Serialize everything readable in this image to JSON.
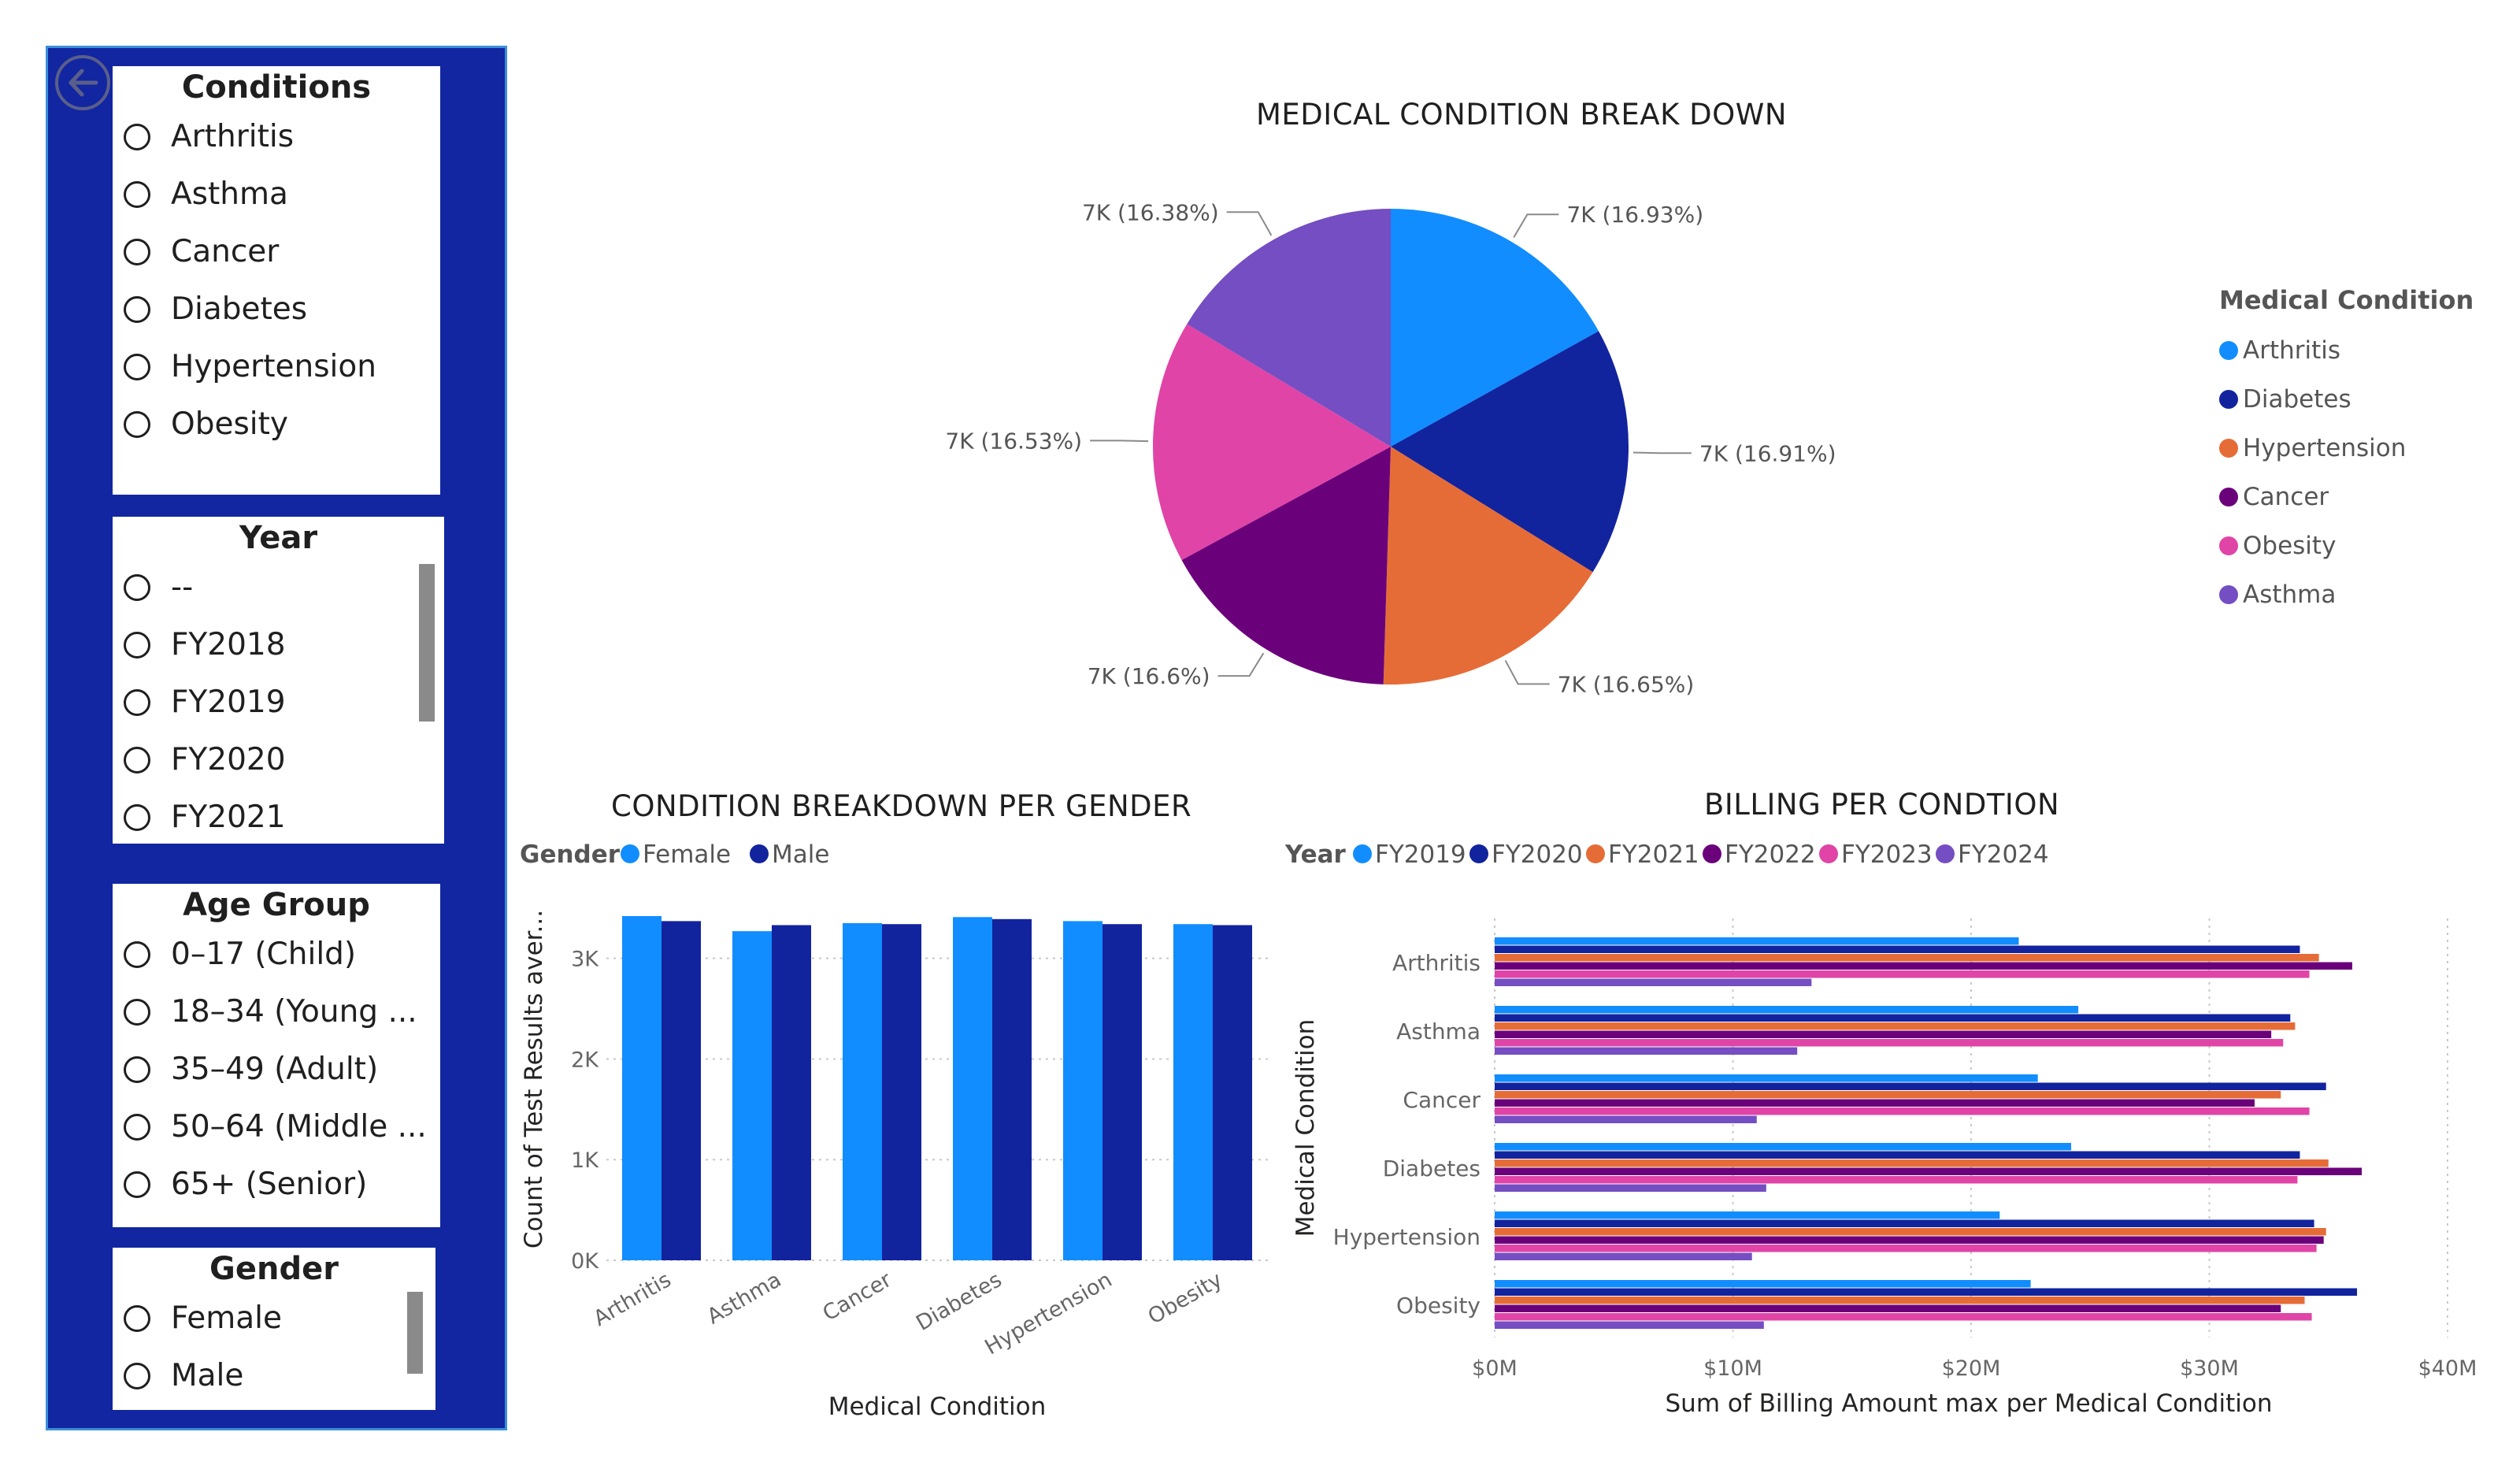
{
  "slicers": {
    "conditions": {
      "title": "Conditions",
      "items": [
        "Arthritis",
        "Asthma",
        "Cancer",
        "Diabetes",
        "Hypertension",
        "Obesity"
      ]
    },
    "year": {
      "title": "Year",
      "items": [
        "--",
        "FY2018",
        "FY2019",
        "FY2020",
        "FY2021"
      ]
    },
    "age_group": {
      "title": "Age Group",
      "items": [
        "0–17 (Child)",
        "18–34 (Young ...",
        "35–49 (Adult)",
        "50–64 (Middle ...",
        "65+ (Senior)"
      ]
    },
    "gender": {
      "title": "Gender",
      "items": [
        "Female",
        "Male"
      ]
    }
  },
  "charts": {
    "pie": {
      "title": "MEDICAL CONDITION BREAK DOWN"
    },
    "gender_bar": {
      "title": "CONDITION BREAKDOWN PER GENDER"
    },
    "billing": {
      "title": "BILLING PER CONDTION"
    }
  },
  "chart_data": [
    {
      "type": "pie",
      "title": "MEDICAL CONDITION BREAK DOWN",
      "legend_title": "Medical Condition",
      "legend_position": "right",
      "slices": [
        {
          "name": "Arthritis",
          "label": "7K (16.93%)",
          "percent": 16.93,
          "color": "#118dff"
        },
        {
          "name": "Diabetes",
          "label": "7K (16.91%)",
          "percent": 16.91,
          "color": "#12239e"
        },
        {
          "name": "Hypertension",
          "label": "7K (16.65%)",
          "percent": 16.65,
          "color": "#e66c37"
        },
        {
          "name": "Cancer",
          "label": "7K (16.6%)",
          "percent": 16.6,
          "color": "#6b007b"
        },
        {
          "name": "Obesity",
          "label": "7K (16.53%)",
          "percent": 16.53,
          "color": "#e044a7"
        },
        {
          "name": "Asthma",
          "label": "7K (16.38%)",
          "percent": 16.38,
          "color": "#744ec2"
        }
      ]
    },
    {
      "type": "bar",
      "title": "CONDITION BREAKDOWN PER GENDER",
      "legend_title": "Gender",
      "legend_position": "top-left",
      "categories": [
        "Arthritis",
        "Asthma",
        "Cancer",
        "Diabetes",
        "Hypertension",
        "Obesity"
      ],
      "series": [
        {
          "name": "Female",
          "color": "#118dff",
          "values": [
            3420,
            3270,
            3350,
            3410,
            3370,
            3340
          ]
        },
        {
          "name": "Male",
          "color": "#12239e",
          "values": [
            3370,
            3330,
            3340,
            3390,
            3340,
            3330
          ]
        }
      ],
      "ylim": [
        0,
        3600
      ],
      "yticks": [
        0,
        1000,
        2000,
        3000
      ],
      "ytick_labels": [
        "0K",
        "1K",
        "2K",
        "3K"
      ],
      "xlabel": "Medical Condition",
      "ylabel": "Count of Test Results aver...",
      "grid": true
    },
    {
      "type": "bar",
      "orientation": "horizontal",
      "title": "BILLING PER CONDTION",
      "legend_title": "Year",
      "legend_position": "top-left",
      "categories": [
        "Arthritis",
        "Asthma",
        "Cancer",
        "Diabetes",
        "Hypertension",
        "Obesity"
      ],
      "series": [
        {
          "name": "FY2019",
          "color": "#118dff",
          "values": [
            22.0,
            24.5,
            22.8,
            24.2,
            21.2,
            22.5
          ]
        },
        {
          "name": "FY2020",
          "color": "#12239e",
          "values": [
            33.8,
            33.4,
            34.9,
            33.8,
            34.4,
            36.2
          ]
        },
        {
          "name": "FY2021",
          "color": "#e66c37",
          "values": [
            34.6,
            33.6,
            33.0,
            35.0,
            34.9,
            34.0
          ]
        },
        {
          "name": "FY2022",
          "color": "#6b007b",
          "values": [
            36.0,
            32.6,
            31.9,
            36.4,
            34.8,
            33.0
          ]
        },
        {
          "name": "FY2023",
          "color": "#e044a7",
          "values": [
            34.2,
            33.1,
            34.2,
            33.7,
            34.5,
            34.3
          ]
        },
        {
          "name": "FY2024",
          "color": "#744ec2",
          "values": [
            13.3,
            12.7,
            11.0,
            11.4,
            10.8,
            11.3
          ]
        }
      ],
      "xlim": [
        0,
        40
      ],
      "xticks": [
        0,
        10,
        20,
        30,
        40
      ],
      "xtick_labels": [
        "$0M",
        "$10M",
        "$20M",
        "$30M",
        "$40M"
      ],
      "xlabel": "Sum of Billing Amount max per Medical Condition",
      "ylabel": "Medical Condition",
      "grid": true
    }
  ]
}
